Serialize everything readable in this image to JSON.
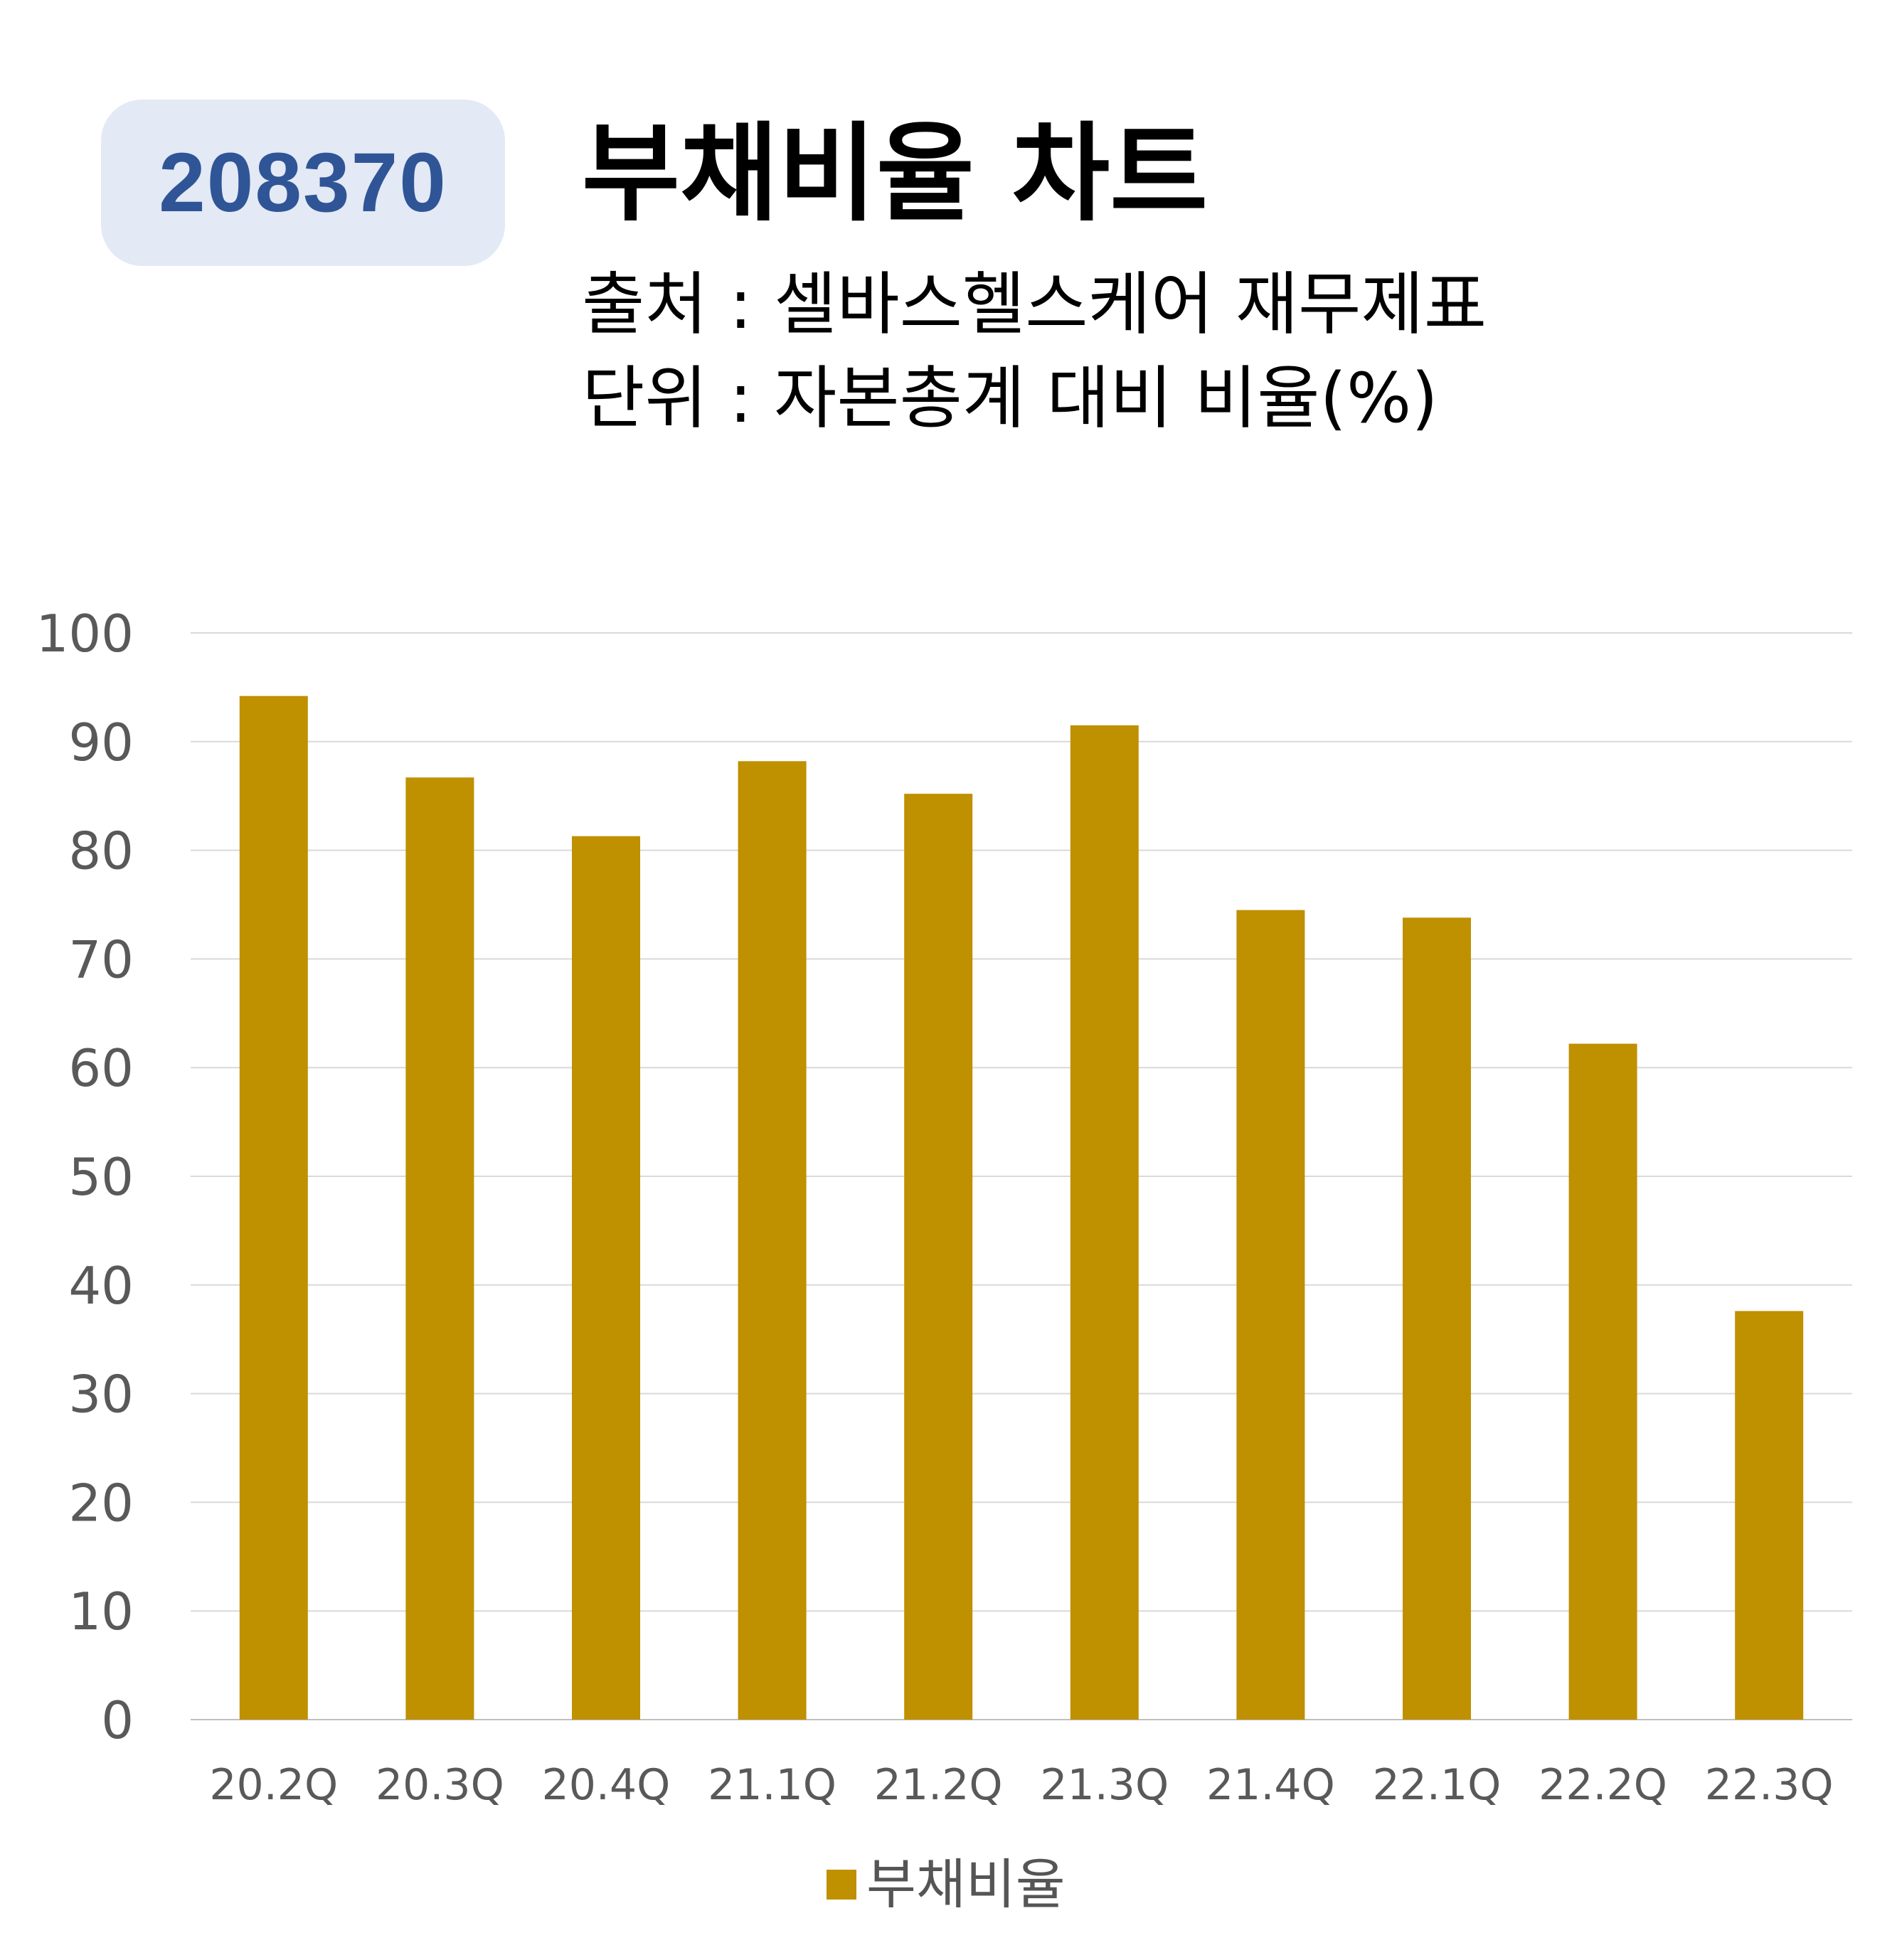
{
  "badge": {
    "code": "208370"
  },
  "header": {
    "title": "부채비율 차트",
    "source": "출처 : 셀바스헬스케어 재무제표",
    "unit": "단위 : 자본총계 대비 비율(%)"
  },
  "chart_data": {
    "type": "bar",
    "title": "부채비율 차트",
    "xlabel": "",
    "ylabel": "",
    "categories": [
      "20.2Q",
      "20.3Q",
      "20.4Q",
      "21.1Q",
      "21.2Q",
      "21.3Q",
      "21.4Q",
      "22.1Q",
      "22.2Q",
      "22.3Q"
    ],
    "series": [
      {
        "name": "부채비율",
        "values": [
          94.2,
          86.7,
          81.3,
          88.2,
          85.2,
          91.5,
          74.5,
          73.8,
          62.2,
          37.6
        ],
        "color": "#bf9000"
      }
    ],
    "ylim": [
      0,
      100
    ],
    "yticks": [
      "0",
      "10",
      "20",
      "30",
      "40",
      "50",
      "60",
      "70",
      "80",
      "90",
      "100"
    ],
    "grid": true,
    "legend": "bottom"
  }
}
